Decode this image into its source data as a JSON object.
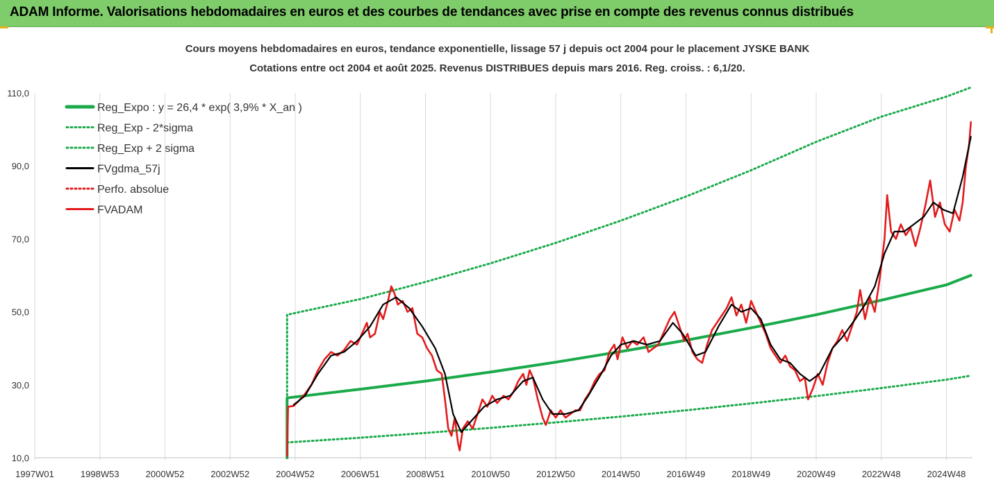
{
  "banner": {
    "title": "ADAM Informe. Valorisations hebdomadaires en euros et des courbes de tendances avec prise en compte des revenus connus distribués"
  },
  "chart_data": {
    "type": "line",
    "title_line1": "Cours moyens hebdomadaires en euros, tendance exponentielle, lissage 57 j depuis oct 2004 pour le placement JYSKE BANK",
    "title_line2": "Cotations entre oct 2004 et août 2025. Revenus DISTRIBUES depuis mars 2016. Reg. croiss. : 6,1/20.",
    "xlabel": "",
    "ylabel": "",
    "x_ticks": [
      {
        "label": "1997W01",
        "x": 1997.0
      },
      {
        "label": "1998W53",
        "x": 1999.0
      },
      {
        "label": "2000W52",
        "x": 2001.0
      },
      {
        "label": "2002W52",
        "x": 2003.0
      },
      {
        "label": "2004W52",
        "x": 2005.0
      },
      {
        "label": "2006W51",
        "x": 2007.0
      },
      {
        "label": "2008W51",
        "x": 2009.0
      },
      {
        "label": "2010W50",
        "x": 2011.0
      },
      {
        "label": "2012W50",
        "x": 2013.0
      },
      {
        "label": "2014W50",
        "x": 2015.0
      },
      {
        "label": "2016W49",
        "x": 2017.0
      },
      {
        "label": "2018W49",
        "x": 2019.0
      },
      {
        "label": "2020W49",
        "x": 2021.0
      },
      {
        "label": "2022W48",
        "x": 2023.0
      },
      {
        "label": "2024W48",
        "x": 2025.0
      }
    ],
    "y_ticks": [
      {
        "label": "10,0",
        "y": 10
      },
      {
        "label": "30,0",
        "y": 30
      },
      {
        "label": "50,0",
        "y": 50
      },
      {
        "label": "70,0",
        "y": 70
      },
      {
        "label": "90,0",
        "y": 90
      },
      {
        "label": "110,0",
        "y": 110
      }
    ],
    "xlim": [
      1997.0,
      2025.8
    ],
    "ylim": [
      10,
      110
    ],
    "grid": "vertical",
    "legend_position": "top-left",
    "series": [
      {
        "name": "Reg_Expo : y = 26,4 * exp( 3,9% *  X_an )",
        "color": "#1aaa4a",
        "style": "solid",
        "points": [
          [
            2004.75,
            10.0
          ],
          [
            2004.75,
            26.4
          ],
          [
            2007,
            28.8
          ],
          [
            2009,
            31.0
          ],
          [
            2011,
            33.5
          ],
          [
            2013,
            36.2
          ],
          [
            2015,
            39.1
          ],
          [
            2017,
            42.2
          ],
          [
            2019,
            45.6
          ],
          [
            2021,
            49.2
          ],
          [
            2023,
            53.2
          ],
          [
            2025,
            57.4
          ],
          [
            2025.75,
            60.0
          ]
        ]
      },
      {
        "name": "Reg_Exp - 2*sigma",
        "color": "#1aaa4a",
        "style": "dotted",
        "points": [
          [
            2004.75,
            14.2
          ],
          [
            2007,
            15.5
          ],
          [
            2009,
            16.8
          ],
          [
            2011,
            18.2
          ],
          [
            2013,
            19.7
          ],
          [
            2015,
            21.3
          ],
          [
            2017,
            23.0
          ],
          [
            2019,
            24.9
          ],
          [
            2021,
            26.9
          ],
          [
            2023,
            29.1
          ],
          [
            2025,
            31.4
          ],
          [
            2025.75,
            32.5
          ]
        ]
      },
      {
        "name": "Reg_Exp + 2 sigma",
        "color": "#1aaa4a",
        "style": "dotted",
        "points": [
          [
            2004.75,
            10.0
          ],
          [
            2004.75,
            49.2
          ],
          [
            2007,
            53.5
          ],
          [
            2009,
            58.2
          ],
          [
            2011,
            63.3
          ],
          [
            2013,
            68.9
          ],
          [
            2015,
            75.0
          ],
          [
            2017,
            81.6
          ],
          [
            2019,
            88.8
          ],
          [
            2021,
            96.6
          ],
          [
            2023,
            103.5
          ],
          [
            2025,
            109.0
          ],
          [
            2025.75,
            111.5
          ]
        ]
      },
      {
        "name": "FVgdma_57j",
        "color": "#000000",
        "style": "solid",
        "points": [
          [
            2004.95,
            24.5
          ],
          [
            2005.3,
            27
          ],
          [
            2005.7,
            33
          ],
          [
            2006.1,
            38
          ],
          [
            2006.5,
            39
          ],
          [
            2006.9,
            42
          ],
          [
            2007.3,
            46
          ],
          [
            2007.7,
            52
          ],
          [
            2008.1,
            54
          ],
          [
            2008.5,
            51
          ],
          [
            2008.9,
            46
          ],
          [
            2009.3,
            40
          ],
          [
            2009.6,
            33
          ],
          [
            2009.85,
            22
          ],
          [
            2010.1,
            17
          ],
          [
            2010.4,
            20
          ],
          [
            2010.8,
            24
          ],
          [
            2011.2,
            26
          ],
          [
            2011.6,
            27
          ],
          [
            2012.0,
            31
          ],
          [
            2012.3,
            32
          ],
          [
            2012.6,
            26
          ],
          [
            2012.9,
            22
          ],
          [
            2013.3,
            22
          ],
          [
            2013.7,
            23
          ],
          [
            2014.0,
            27
          ],
          [
            2014.4,
            33
          ],
          [
            2014.7,
            38
          ],
          [
            2015.0,
            41
          ],
          [
            2015.4,
            42
          ],
          [
            2015.8,
            41
          ],
          [
            2016.2,
            42
          ],
          [
            2016.6,
            47
          ],
          [
            2016.9,
            44
          ],
          [
            2017.3,
            38
          ],
          [
            2017.6,
            39
          ],
          [
            2018.0,
            46
          ],
          [
            2018.4,
            52
          ],
          [
            2018.7,
            50
          ],
          [
            2019.0,
            51
          ],
          [
            2019.3,
            48
          ],
          [
            2019.6,
            41
          ],
          [
            2019.9,
            37
          ],
          [
            2020.2,
            36
          ],
          [
            2020.5,
            33
          ],
          [
            2020.8,
            31
          ],
          [
            2021.1,
            33
          ],
          [
            2021.5,
            40
          ],
          [
            2021.8,
            43
          ],
          [
            2022.2,
            48
          ],
          [
            2022.5,
            52
          ],
          [
            2022.8,
            57
          ],
          [
            2023.1,
            66
          ],
          [
            2023.4,
            72
          ],
          [
            2023.7,
            72
          ],
          [
            2024.0,
            74
          ],
          [
            2024.3,
            76
          ],
          [
            2024.6,
            80
          ],
          [
            2024.9,
            78
          ],
          [
            2025.2,
            77
          ],
          [
            2025.5,
            87
          ],
          [
            2025.75,
            98
          ]
        ]
      },
      {
        "name": "Perfo. absolue",
        "color": "#e31a1c",
        "style": "dotted",
        "points": []
      },
      {
        "name": "FVADAM",
        "color": "#e31a1c",
        "style": "solid",
        "points": [
          [
            2004.75,
            10.5
          ],
          [
            2004.78,
            24
          ],
          [
            2004.95,
            24.2
          ],
          [
            2005.1,
            25.5
          ],
          [
            2005.3,
            27.5
          ],
          [
            2005.5,
            30
          ],
          [
            2005.7,
            34
          ],
          [
            2005.9,
            37
          ],
          [
            2006.1,
            39
          ],
          [
            2006.3,
            38
          ],
          [
            2006.5,
            39.5
          ],
          [
            2006.7,
            42
          ],
          [
            2006.9,
            41
          ],
          [
            2007.05,
            44
          ],
          [
            2007.2,
            47
          ],
          [
            2007.3,
            43
          ],
          [
            2007.45,
            44
          ],
          [
            2007.6,
            50
          ],
          [
            2007.7,
            48
          ],
          [
            2007.85,
            53
          ],
          [
            2007.95,
            57
          ],
          [
            2008.05,
            55
          ],
          [
            2008.15,
            52
          ],
          [
            2008.3,
            53
          ],
          [
            2008.45,
            50
          ],
          [
            2008.6,
            51
          ],
          [
            2008.75,
            44
          ],
          [
            2008.9,
            43
          ],
          [
            2009.05,
            40
          ],
          [
            2009.2,
            38
          ],
          [
            2009.35,
            34
          ],
          [
            2009.5,
            33
          ],
          [
            2009.6,
            26
          ],
          [
            2009.7,
            18
          ],
          [
            2009.8,
            16
          ],
          [
            2009.9,
            21
          ],
          [
            2010.0,
            14
          ],
          [
            2010.05,
            12
          ],
          [
            2010.15,
            18
          ],
          [
            2010.3,
            20
          ],
          [
            2010.45,
            18
          ],
          [
            2010.6,
            22
          ],
          [
            2010.75,
            26
          ],
          [
            2010.9,
            24
          ],
          [
            2011.05,
            27
          ],
          [
            2011.2,
            25
          ],
          [
            2011.4,
            27
          ],
          [
            2011.55,
            26
          ],
          [
            2011.7,
            28
          ],
          [
            2011.85,
            31
          ],
          [
            2012.0,
            33
          ],
          [
            2012.1,
            30
          ],
          [
            2012.2,
            34
          ],
          [
            2012.3,
            32
          ],
          [
            2012.45,
            26
          ],
          [
            2012.6,
            21
          ],
          [
            2012.7,
            19
          ],
          [
            2012.85,
            23
          ],
          [
            2013.0,
            21
          ],
          [
            2013.15,
            23
          ],
          [
            2013.3,
            21
          ],
          [
            2013.45,
            22
          ],
          [
            2013.6,
            23
          ],
          [
            2013.75,
            23
          ],
          [
            2013.9,
            26
          ],
          [
            2014.05,
            28
          ],
          [
            2014.2,
            31
          ],
          [
            2014.35,
            33
          ],
          [
            2014.5,
            34
          ],
          [
            2014.65,
            39
          ],
          [
            2014.8,
            41
          ],
          [
            2014.9,
            37
          ],
          [
            2015.05,
            43
          ],
          [
            2015.2,
            40
          ],
          [
            2015.35,
            42
          ],
          [
            2015.5,
            41
          ],
          [
            2015.7,
            43
          ],
          [
            2015.85,
            39
          ],
          [
            2016.0,
            40
          ],
          [
            2016.15,
            41
          ],
          [
            2016.35,
            45
          ],
          [
            2016.5,
            48
          ],
          [
            2016.65,
            50
          ],
          [
            2016.8,
            46
          ],
          [
            2016.95,
            42
          ],
          [
            2017.05,
            44
          ],
          [
            2017.2,
            39
          ],
          [
            2017.35,
            37
          ],
          [
            2017.5,
            36
          ],
          [
            2017.65,
            41
          ],
          [
            2017.8,
            45
          ],
          [
            2017.95,
            47
          ],
          [
            2018.1,
            49
          ],
          [
            2018.25,
            51
          ],
          [
            2018.4,
            54
          ],
          [
            2018.55,
            49
          ],
          [
            2018.7,
            52
          ],
          [
            2018.85,
            47
          ],
          [
            2019.0,
            53
          ],
          [
            2019.15,
            50
          ],
          [
            2019.3,
            47
          ],
          [
            2019.45,
            44
          ],
          [
            2019.6,
            40
          ],
          [
            2019.75,
            38
          ],
          [
            2019.9,
            36
          ],
          [
            2020.05,
            38
          ],
          [
            2020.2,
            35
          ],
          [
            2020.35,
            34
          ],
          [
            2020.5,
            31
          ],
          [
            2020.65,
            32
          ],
          [
            2020.75,
            26
          ],
          [
            2020.9,
            29
          ],
          [
            2021.05,
            33
          ],
          [
            2021.2,
            30
          ],
          [
            2021.35,
            36
          ],
          [
            2021.5,
            40
          ],
          [
            2021.65,
            42
          ],
          [
            2021.8,
            45
          ],
          [
            2021.95,
            42
          ],
          [
            2022.1,
            46
          ],
          [
            2022.25,
            50
          ],
          [
            2022.35,
            56
          ],
          [
            2022.5,
            48
          ],
          [
            2022.65,
            54
          ],
          [
            2022.8,
            50
          ],
          [
            2022.95,
            59
          ],
          [
            2023.1,
            70
          ],
          [
            2023.18,
            82
          ],
          [
            2023.3,
            72
          ],
          [
            2023.45,
            70
          ],
          [
            2023.6,
            74
          ],
          [
            2023.75,
            71
          ],
          [
            2023.9,
            73
          ],
          [
            2024.05,
            68
          ],
          [
            2024.2,
            73
          ],
          [
            2024.35,
            79
          ],
          [
            2024.5,
            86
          ],
          [
            2024.65,
            76
          ],
          [
            2024.8,
            80
          ],
          [
            2024.95,
            74
          ],
          [
            2025.1,
            72
          ],
          [
            2025.25,
            78
          ],
          [
            2025.4,
            75
          ],
          [
            2025.5,
            80
          ],
          [
            2025.6,
            90
          ],
          [
            2025.7,
            96
          ],
          [
            2025.75,
            102
          ]
        ]
      }
    ]
  }
}
